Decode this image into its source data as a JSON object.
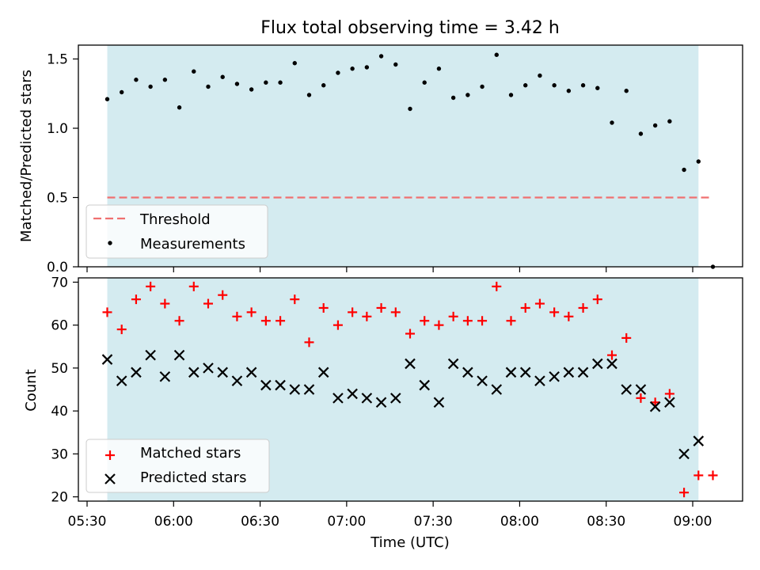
{
  "chart_data": [
    {
      "type": "scatter",
      "title": "Flux total observing time = 3.42 h",
      "xlabel": "",
      "ylabel": "Matched/Predicted stars",
      "ylim": [
        0,
        1.6
      ],
      "yticks": [
        "0.0",
        "0.5",
        "1.0",
        "1.5"
      ],
      "shaded_interval": [
        "05:37",
        "09:02"
      ],
      "shaded_color": "#d4ebf0",
      "threshold": {
        "name": "Threshold",
        "value": 0.5,
        "x_start": "05:37",
        "x_end": "09:07",
        "color": "#f07070"
      },
      "legend": {
        "placement": "lower-left",
        "entries": [
          "Threshold",
          "Measurements"
        ]
      },
      "series": [
        {
          "name": "Measurements",
          "color": "#000000",
          "x": [
            "05:37",
            "05:42",
            "05:47",
            "05:52",
            "05:57",
            "06:02",
            "06:07",
            "06:12",
            "06:17",
            "06:22",
            "06:27",
            "06:32",
            "06:37",
            "06:42",
            "06:47",
            "06:52",
            "06:57",
            "07:02",
            "07:07",
            "07:12",
            "07:17",
            "07:22",
            "07:27",
            "07:32",
            "07:37",
            "07:42",
            "07:47",
            "07:52",
            "07:57",
            "08:02",
            "08:07",
            "08:12",
            "08:17",
            "08:22",
            "08:27",
            "08:32",
            "08:37",
            "08:42",
            "08:47",
            "08:52",
            "08:57",
            "09:02",
            "09:07"
          ],
          "y": [
            1.21,
            1.26,
            1.35,
            1.3,
            1.35,
            1.15,
            1.41,
            1.3,
            1.37,
            1.32,
            1.28,
            1.33,
            1.33,
            1.47,
            1.24,
            1.31,
            1.4,
            1.43,
            1.44,
            1.52,
            1.46,
            1.14,
            1.33,
            1.43,
            1.22,
            1.24,
            1.3,
            1.53,
            1.24,
            1.31,
            1.38,
            1.31,
            1.27,
            1.31,
            1.29,
            1.04,
            1.27,
            0.96,
            1.02,
            1.05,
            0.7,
            0.76,
            0.0
          ]
        }
      ]
    },
    {
      "type": "scatter",
      "xlabel": "Time (UTC)",
      "ylabel": "Count",
      "ylim": [
        19,
        71
      ],
      "yticks": [
        "20",
        "30",
        "40",
        "50",
        "60",
        "70"
      ],
      "xticks": [
        "05:30",
        "06:00",
        "06:30",
        "07:00",
        "07:30",
        "08:00",
        "08:30",
        "09:00"
      ],
      "legend": {
        "placement": "lower-left",
        "entries": [
          "Matched stars",
          "Predicted stars"
        ]
      },
      "series": [
        {
          "name": "Matched stars",
          "marker": "plus",
          "color": "#ff0000",
          "x": [
            "05:37",
            "05:42",
            "05:47",
            "05:52",
            "05:57",
            "06:02",
            "06:07",
            "06:12",
            "06:17",
            "06:22",
            "06:27",
            "06:32",
            "06:37",
            "06:42",
            "06:47",
            "06:52",
            "06:57",
            "07:02",
            "07:07",
            "07:12",
            "07:17",
            "07:22",
            "07:27",
            "07:32",
            "07:37",
            "07:42",
            "07:47",
            "07:52",
            "07:57",
            "08:02",
            "08:07",
            "08:12",
            "08:17",
            "08:22",
            "08:27",
            "08:32",
            "08:37",
            "08:42",
            "08:47",
            "08:52",
            "08:57",
            "09:02",
            "09:07"
          ],
          "y": [
            63,
            59,
            66,
            69,
            65,
            61,
            69,
            65,
            67,
            62,
            63,
            61,
            61,
            66,
            56,
            64,
            60,
            63,
            62,
            64,
            63,
            58,
            61,
            60,
            62,
            61,
            61,
            69,
            61,
            64,
            65,
            63,
            62,
            64,
            66,
            53,
            57,
            43,
            42,
            44,
            21,
            25,
            25
          ]
        },
        {
          "name": "Predicted stars",
          "marker": "x",
          "color": "#000000",
          "x": [
            "05:37",
            "05:42",
            "05:47",
            "05:52",
            "05:57",
            "06:02",
            "06:07",
            "06:12",
            "06:17",
            "06:22",
            "06:27",
            "06:32",
            "06:37",
            "06:42",
            "06:47",
            "06:52",
            "06:57",
            "07:02",
            "07:07",
            "07:12",
            "07:17",
            "07:22",
            "07:27",
            "07:32",
            "07:37",
            "07:42",
            "07:47",
            "07:52",
            "07:57",
            "08:02",
            "08:07",
            "08:12",
            "08:17",
            "08:22",
            "08:27",
            "08:32",
            "08:37",
            "08:42",
            "08:47",
            "08:52",
            "08:57",
            "09:02"
          ],
          "y": [
            52,
            47,
            49,
            53,
            48,
            53,
            49,
            50,
            49,
            47,
            49,
            46,
            46,
            45,
            45,
            49,
            43,
            44,
            43,
            42,
            43,
            51,
            46,
            42,
            51,
            49,
            47,
            45,
            49,
            49,
            47,
            48,
            49,
            49,
            51,
            51,
            45,
            45,
            41,
            42,
            30,
            33
          ]
        }
      ]
    }
  ]
}
